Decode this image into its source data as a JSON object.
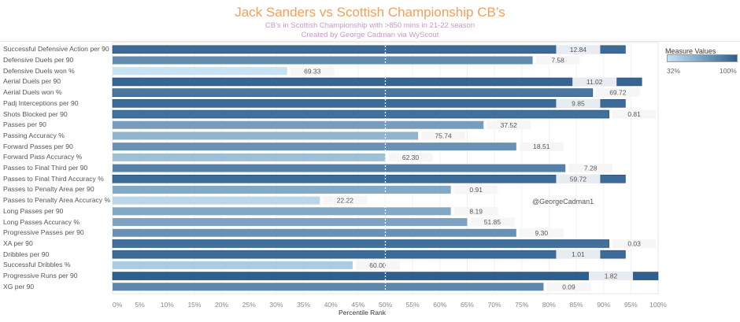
{
  "header": {
    "title": "Jack Sanders vs Scottish Championship CB’s",
    "subtitle1": "CB’s in Scottish Championship with >850 mins in 21-22 season",
    "subtitle2": "Created by George Cadman via WyScout"
  },
  "legend": {
    "title": "Measure Values",
    "min_label": "32%",
    "max_label": "100%",
    "color_low": "#c6e2f3",
    "color_high": "#2f5f8e"
  },
  "watermark": "@GeorgeCadman1",
  "chart_data": {
    "type": "bar",
    "orientation": "horizontal",
    "title": "Jack Sanders vs Scottish Championship CB’s",
    "xlabel": "Percentile Rank",
    "ylabel": "",
    "xlim": [
      0,
      100
    ],
    "x_ticks": [
      "0%",
      "5%",
      "10%",
      "15%",
      "20%",
      "25%",
      "30%",
      "35%",
      "40%",
      "45%",
      "50%",
      "55%",
      "60%",
      "65%",
      "70%",
      "75%",
      "80%",
      "85%",
      "90%",
      "95%",
      "100%"
    ],
    "reference_line": 50,
    "grid": true,
    "legend_position": "top-right",
    "categories": [
      "Successful Defensive Action per 90",
      "Defensive Duels per 90",
      "Defensive Duels won %",
      "Aerial Duels per 90",
      "Aerial Duels won %",
      "Padj Interceptions per 90",
      "Shots Blocked per 90",
      "Passes per 90",
      "Passing Accuracy %",
      "Forward Passes per 90",
      "Forward Pass Accuracy %",
      "Passes to Final Third per 90",
      "Passes to Final Third Accuracy %",
      "Passes to Penalty Area per 90",
      "Passes to Penalty Area Accuracy %",
      "Long Passes per 90",
      "Long Passes Accuracy %",
      "Progressive Passes per 90",
      "XA per 90",
      "Dribbles per 90",
      "Successful Dribbles %",
      "Progressive Runs per 90",
      "XG per 90"
    ],
    "values": [
      94,
      77,
      32,
      97,
      88,
      94,
      91,
      68,
      56,
      74,
      50,
      83,
      94,
      62,
      38,
      62,
      65,
      74,
      91,
      94,
      44,
      100,
      79
    ],
    "raw_values": [
      "12.84",
      "7.58",
      "69.33",
      "11.02",
      "69.72",
      "9.85",
      "0.81",
      "37.52",
      "75.74",
      "18.51",
      "62.30",
      "7.28",
      "59.72",
      "0.91",
      "22.22",
      "8.19",
      "51.85",
      "9.30",
      "0.03",
      "1.01",
      "60.00",
      "1.82",
      "0.09"
    ]
  }
}
